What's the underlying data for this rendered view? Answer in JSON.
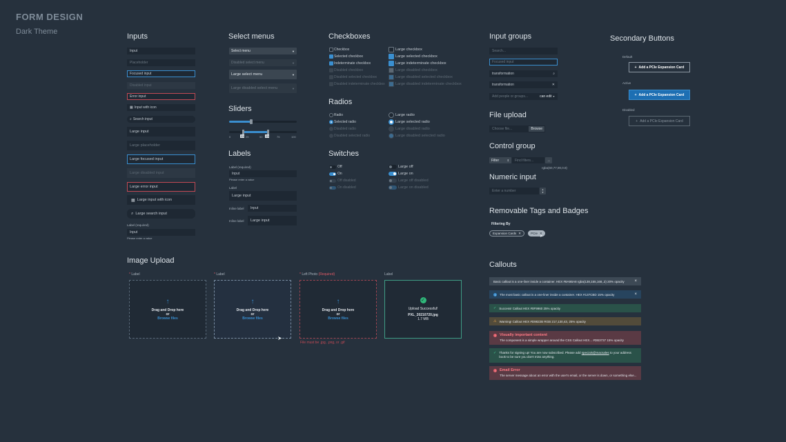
{
  "brand": {
    "title": "FORM DESIGN",
    "subtitle": "Dark Theme"
  },
  "inputs": {
    "heading": "Inputs",
    "small": [
      "Input",
      "Placeholder",
      "Focused input",
      "Disabled input",
      "Error input",
      "Input with icon",
      "Search input"
    ],
    "large": [
      "Large input",
      "Large placeholder",
      "Large focused input",
      "Large disabled input",
      "Large error input",
      "Large input with icon",
      "Large search input"
    ],
    "required_label": "Label (required)",
    "required_value": "Input",
    "required_hint": "Please enter a value"
  },
  "select": {
    "heading": "Select menus",
    "items": [
      "Select menu",
      "Disabled select menu",
      "Large select menu",
      "Large disabled select menu"
    ]
  },
  "sliders": {
    "heading": "Sliders",
    "ticks": [
      "0",
      "25",
      "50",
      "75",
      "100"
    ],
    "value_a": "23",
    "value_b": "53",
    "value_c": "23",
    "level_single": 0.33,
    "range": [
      0.2,
      0.57
    ]
  },
  "labels": {
    "heading": "Labels",
    "required": "Label (required)",
    "input1": "Input",
    "hint": "Please enter a value",
    "label2": "Label",
    "input2": "Large input",
    "inline1": "Inline label",
    "inline1_value": "Input",
    "inline2": "Inline label",
    "inline2_value": "Large input"
  },
  "checkboxes": {
    "heading": "Checkboxes",
    "small": [
      "Checkbox",
      "Selected checkbox",
      "Indeterminate checkbox",
      "Disabled checkbox",
      "Disabled selected checkbox",
      "Disabled indeterminate checkbox"
    ],
    "large": [
      "Large checkbox",
      "Large selected checkbox",
      "Large indeterminate checkbox",
      "Large disabled checkbox",
      "Large disabled selected checkbox",
      "Large disabled indeterminate checkbox"
    ]
  },
  "radios": {
    "heading": "Radios",
    "small": [
      "Radio",
      "Selected radio",
      "Disabled radio",
      "Disabled selected radio"
    ],
    "large": [
      "Large radio",
      "Large selected radio",
      "Large disabled radio",
      "Large disabled selected radio"
    ]
  },
  "switches": {
    "heading": "Switches",
    "small": [
      "Off",
      "On",
      "Off disabled",
      "On disabled"
    ],
    "large": [
      "Large off",
      "Large on",
      "Large off disabled",
      "Large on disabled"
    ]
  },
  "image_upload": {
    "heading": "Image Upload",
    "label": "Label",
    "label_photo": "Left Photo",
    "required_tag": "(Required)",
    "drag": "Drag and Drop here",
    "or": "or",
    "browse": "Browse files",
    "error": "File must be .jpg, .png, or .gif",
    "success": "Upload Successful!",
    "filename": "PXL_20210720.jpg",
    "filesize": "1.7 MB",
    "star": "*"
  },
  "input_groups": {
    "heading": "Input groups",
    "search": "Search...",
    "focused": "Focused input",
    "transform1": "transformation",
    "transform2": "transformation",
    "people": "Add people or groups...",
    "can_edit": "can edit"
  },
  "file_upload": {
    "heading": "File upload",
    "choose": "Choose file...",
    "browse": "Browse"
  },
  "control_group": {
    "heading": "Control group",
    "filter": "Filter",
    "find": "Find filters...",
    "rgba": "rgba(60,77,90,0.8)"
  },
  "numeric": {
    "heading": "Numeric input",
    "placeholder": "Enter a number"
  },
  "tags": {
    "heading": "Removable Tags and Badges",
    "filtering": "Filtering By",
    "tag1": "Expansion Cards",
    "tag2": "PCIe"
  },
  "secondary": {
    "heading": "Secondary Buttons",
    "default": "Default",
    "active": "Active",
    "disabled": "Disabled",
    "button": "Add a PCIe Expansion Card",
    "plus": "+"
  },
  "callouts": {
    "heading": "Callouts",
    "basic": "Basic callout is a one-liner inside a container. HEX #8A9BA8 rgba(138,155,168,.2)  20% opacity",
    "info": "The most basic callout is a one-liner inside a container. HEX #137CBD 15% opacity",
    "success": "Success! Callout HEX #0F9960 25% opacity",
    "warning": "Warning! Callout HEX #D9822B RGB 217,130,43, 25% opacity",
    "danger_title": "Visually important content",
    "danger_body": "The component is a simple wrapper around the CSS Callout HEX... #DB3737 15% opacity",
    "signup_a": "Thanks for signing up! You are now subscribed. Please add ",
    "signup_link": "specials@macsales",
    "signup_b": " to your address book to be sure you don't miss anything.",
    "email_title": "Email Error",
    "email_body": "The server message about an error with the user's email, or the server is down, or something else...",
    "close": "×"
  },
  "colors": {
    "bg": "#26313d",
    "accent": "#3a8fd0",
    "error": "#c34a55",
    "success": "#0f9960",
    "warning": "#d9822b"
  }
}
